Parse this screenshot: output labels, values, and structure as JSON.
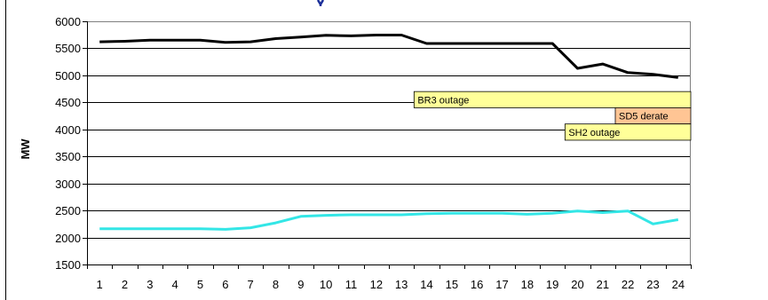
{
  "chart_data": {
    "type": "line",
    "title": "",
    "xlabel": "",
    "ylabel": "MW",
    "ylim": [
      1500,
      6000
    ],
    "yticks": [
      1500,
      2000,
      2500,
      3000,
      3500,
      4000,
      4500,
      5000,
      5500,
      6000
    ],
    "x": [
      1,
      2,
      3,
      4,
      5,
      6,
      7,
      8,
      9,
      10,
      11,
      12,
      13,
      14,
      15,
      16,
      17,
      18,
      19,
      20,
      21,
      22,
      23,
      24
    ],
    "grid": true,
    "series": [
      {
        "color": "#000000",
        "values": [
          5620,
          5630,
          5650,
          5650,
          5650,
          5610,
          5620,
          5680,
          5710,
          5740,
          5730,
          5745,
          5745,
          5590,
          5590,
          5590,
          5590,
          5590,
          5590,
          5130,
          5210,
          5050,
          5020,
          4960
        ]
      },
      {
        "color": "#33e6e6",
        "values": [
          2160,
          2160,
          2160,
          2160,
          2160,
          2150,
          2180,
          2270,
          2390,
          2410,
          2420,
          2420,
          2420,
          2440,
          2450,
          2450,
          2450,
          2430,
          2450,
          2490,
          2460,
          2490,
          2250,
          2330
        ]
      }
    ],
    "annotations": [
      {
        "text": "BR3 outage",
        "x_from": 13.5,
        "x_to": 24.5,
        "y_top": 4700,
        "y_bottom": 4400,
        "fill": "#ffff99"
      },
      {
        "text": "SD5 derate",
        "x_from": 21.5,
        "x_to": 24.5,
        "y_top": 4400,
        "y_bottom": 4100,
        "fill": "#ffc594"
      },
      {
        "text": "SH2 outage",
        "x_from": 19.5,
        "x_to": 24.5,
        "y_top": 4100,
        "y_bottom": 3800,
        "fill": "#ffff99"
      }
    ]
  }
}
